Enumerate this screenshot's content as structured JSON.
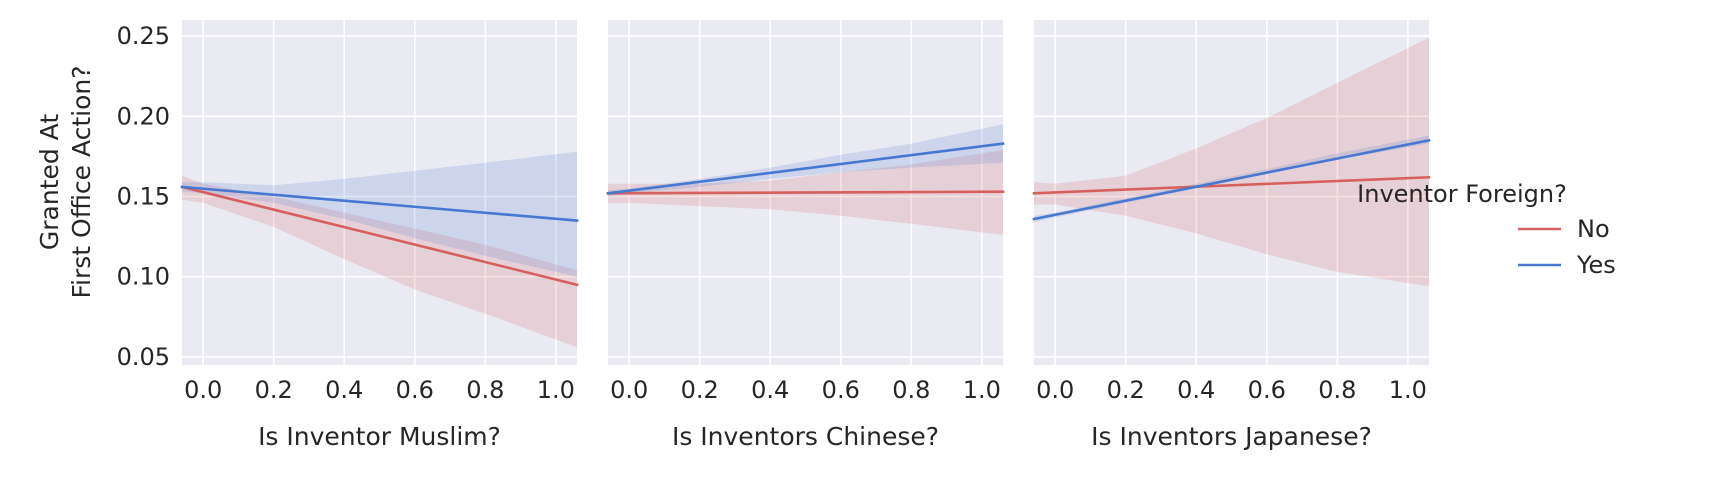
{
  "chart_data": {
    "type": "line",
    "ylabel": [
      "Granted At",
      "First Office Action?"
    ],
    "ylim": [
      0.045,
      0.26
    ],
    "yticks": [
      0.05,
      0.1,
      0.15,
      0.2,
      0.25
    ],
    "ytick_labels": [
      "0.05",
      "0.10",
      "0.15",
      "0.20",
      "0.25"
    ],
    "xlim": [
      -0.06,
      1.06
    ],
    "xticks": [
      0.0,
      0.2,
      0.4,
      0.6,
      0.8,
      1.0
    ],
    "xtick_labels": [
      "0.0",
      "0.2",
      "0.4",
      "0.6",
      "0.8",
      "1.0"
    ],
    "grid": true,
    "background": "#eaeaf2",
    "legend": {
      "title": "Inventor Foreign?",
      "placement": "right",
      "entries": [
        {
          "label": "No",
          "color": "#d65f5f"
        },
        {
          "label": "Yes",
          "color": "#4878d0"
        }
      ]
    },
    "panels": [
      {
        "xlabel": "Is Inventor Muslim?",
        "series": [
          {
            "name": "No",
            "color": "#d65f5f",
            "x": [
              -0.06,
              1.06
            ],
            "y": [
              0.156,
              0.095
            ],
            "ci_x": [
              -0.06,
              0.0,
              0.2,
              0.4,
              0.6,
              0.8,
              1.06
            ],
            "ci_lower": [
              0.148,
              0.146,
              0.131,
              0.111,
              0.092,
              0.077,
              0.056
            ],
            "ci_upper": [
              0.163,
              0.158,
              0.15,
              0.14,
              0.13,
              0.12,
              0.104
            ]
          },
          {
            "name": "Yes",
            "color": "#4878d0",
            "x": [
              -0.06,
              1.06
            ],
            "y": [
              0.156,
              0.135
            ],
            "ci_x": [
              -0.06,
              0.0,
              0.2,
              0.4,
              0.6,
              0.8,
              1.06
            ],
            "ci_lower": [
              0.153,
              0.152,
              0.146,
              0.136,
              0.124,
              0.113,
              0.1
            ],
            "ci_upper": [
              0.159,
              0.159,
              0.157,
              0.161,
              0.166,
              0.171,
              0.178
            ]
          }
        ]
      },
      {
        "xlabel": "Is Inventors Chinese?",
        "series": [
          {
            "name": "No",
            "color": "#d65f5f",
            "x": [
              -0.06,
              1.06
            ],
            "y": [
              0.152,
              0.153
            ],
            "ci_x": [
              -0.06,
              0.0,
              0.2,
              0.4,
              0.6,
              0.8,
              1.06
            ],
            "ci_lower": [
              0.146,
              0.146,
              0.144,
              0.142,
              0.138,
              0.133,
              0.126
            ],
            "ci_upper": [
              0.158,
              0.158,
              0.158,
              0.16,
              0.165,
              0.17,
              0.179
            ]
          },
          {
            "name": "Yes",
            "color": "#4878d0",
            "x": [
              -0.06,
              1.06
            ],
            "y": [
              0.152,
              0.183
            ],
            "ci_x": [
              -0.06,
              0.0,
              0.2,
              0.4,
              0.6,
              0.8,
              1.06
            ],
            "ci_lower": [
              0.15,
              0.152,
              0.156,
              0.161,
              0.165,
              0.168,
              0.171
            ],
            "ci_upper": [
              0.154,
              0.155,
              0.161,
              0.168,
              0.176,
              0.183,
              0.195
            ]
          }
        ]
      },
      {
        "xlabel": "Is Inventors Japanese?",
        "series": [
          {
            "name": "No",
            "color": "#d65f5f",
            "x": [
              -0.06,
              1.06
            ],
            "y": [
              0.152,
              0.162
            ],
            "ci_x": [
              -0.06,
              0.0,
              0.2,
              0.4,
              0.6,
              0.8,
              1.06
            ],
            "ci_lower": [
              0.145,
              0.145,
              0.138,
              0.127,
              0.114,
              0.103,
              0.094
            ],
            "ci_upper": [
              0.159,
              0.158,
              0.163,
              0.18,
              0.199,
              0.221,
              0.249
            ]
          },
          {
            "name": "Yes",
            "color": "#4878d0",
            "x": [
              -0.06,
              1.06
            ],
            "y": [
              0.136,
              0.185
            ],
            "ci_x": [
              -0.06,
              0.0,
              0.2,
              0.4,
              0.6,
              0.8,
              1.06
            ],
            "ci_lower": [
              0.134,
              0.137,
              0.146,
              0.155,
              0.164,
              0.173,
              0.183
            ],
            "ci_upper": [
              0.138,
              0.14,
              0.149,
              0.158,
              0.167,
              0.177,
              0.188
            ]
          }
        ]
      }
    ]
  }
}
